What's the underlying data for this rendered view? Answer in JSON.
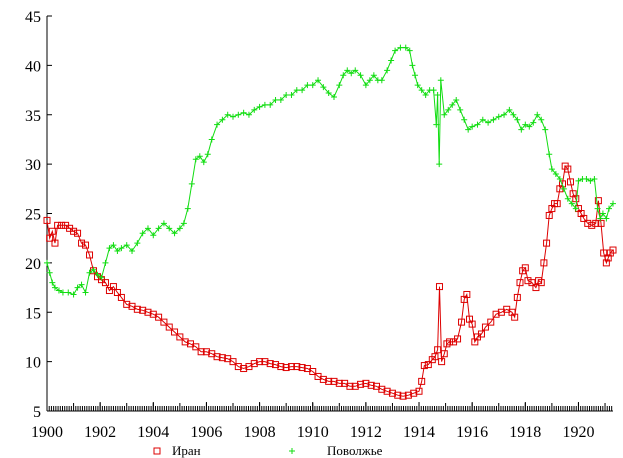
{
  "chart_data": {
    "type": "line",
    "title": "",
    "xlabel": "",
    "ylabel": "",
    "xlim": [
      1900,
      1921.3
    ],
    "ylim": [
      5,
      45
    ],
    "x_ticks": [
      1900,
      1902,
      1904,
      1906,
      1908,
      1910,
      1912,
      1914,
      1916,
      1918,
      1920
    ],
    "y_ticks": [
      5,
      10,
      15,
      20,
      25,
      30,
      35,
      40,
      45
    ],
    "grid": false,
    "legend_position": "bottom",
    "series": [
      {
        "name": "Иран",
        "color": "#dd0000",
        "marker": "square",
        "points": [
          [
            1900.0,
            24.3
          ],
          [
            1900.1,
            22.5
          ],
          [
            1900.2,
            23.2
          ],
          [
            1900.3,
            22.0
          ],
          [
            1900.4,
            23.8
          ],
          [
            1900.55,
            23.8
          ],
          [
            1900.7,
            23.8
          ],
          [
            1900.85,
            23.5
          ],
          [
            1901.0,
            23.2
          ],
          [
            1901.15,
            23.0
          ],
          [
            1901.3,
            22.0
          ],
          [
            1901.45,
            21.8
          ],
          [
            1901.6,
            20.8
          ],
          [
            1901.75,
            19.2
          ],
          [
            1901.9,
            18.6
          ],
          [
            1902.05,
            18.3
          ],
          [
            1902.2,
            18.0
          ],
          [
            1902.35,
            17.2
          ],
          [
            1902.5,
            17.6
          ],
          [
            1902.65,
            17.0
          ],
          [
            1902.8,
            16.5
          ],
          [
            1903.0,
            15.8
          ],
          [
            1903.2,
            15.6
          ],
          [
            1903.4,
            15.3
          ],
          [
            1903.6,
            15.2
          ],
          [
            1903.8,
            15.0
          ],
          [
            1904.0,
            14.8
          ],
          [
            1904.2,
            14.5
          ],
          [
            1904.4,
            14.0
          ],
          [
            1904.6,
            13.5
          ],
          [
            1904.8,
            13.0
          ],
          [
            1905.0,
            12.5
          ],
          [
            1905.2,
            12.0
          ],
          [
            1905.4,
            11.8
          ],
          [
            1905.6,
            11.5
          ],
          [
            1905.8,
            11.0
          ],
          [
            1906.0,
            11.0
          ],
          [
            1906.2,
            10.8
          ],
          [
            1906.4,
            10.5
          ],
          [
            1906.6,
            10.4
          ],
          [
            1906.8,
            10.3
          ],
          [
            1907.0,
            10.0
          ],
          [
            1907.2,
            9.5
          ],
          [
            1907.4,
            9.3
          ],
          [
            1907.6,
            9.5
          ],
          [
            1907.8,
            9.8
          ],
          [
            1908.0,
            10.0
          ],
          [
            1908.2,
            10.0
          ],
          [
            1908.4,
            9.8
          ],
          [
            1908.6,
            9.7
          ],
          [
            1908.8,
            9.5
          ],
          [
            1909.0,
            9.4
          ],
          [
            1909.2,
            9.5
          ],
          [
            1909.4,
            9.5
          ],
          [
            1909.6,
            9.4
          ],
          [
            1909.8,
            9.3
          ],
          [
            1910.0,
            9.0
          ],
          [
            1910.2,
            8.5
          ],
          [
            1910.4,
            8.2
          ],
          [
            1910.6,
            8.0
          ],
          [
            1910.8,
            8.0
          ],
          [
            1911.0,
            7.8
          ],
          [
            1911.2,
            7.8
          ],
          [
            1911.4,
            7.5
          ],
          [
            1911.6,
            7.5
          ],
          [
            1911.8,
            7.7
          ],
          [
            1912.0,
            7.8
          ],
          [
            1912.2,
            7.6
          ],
          [
            1912.4,
            7.5
          ],
          [
            1912.6,
            7.2
          ],
          [
            1912.8,
            7.0
          ],
          [
            1913.0,
            6.8
          ],
          [
            1913.2,
            6.6
          ],
          [
            1913.4,
            6.5
          ],
          [
            1913.6,
            6.6
          ],
          [
            1913.8,
            6.8
          ],
          [
            1914.0,
            7.0
          ],
          [
            1914.1,
            8.0
          ],
          [
            1914.2,
            9.6
          ],
          [
            1914.35,
            9.7
          ],
          [
            1914.5,
            10.2
          ],
          [
            1914.6,
            10.5
          ],
          [
            1914.7,
            11.2
          ],
          [
            1914.77,
            17.6
          ],
          [
            1914.85,
            10.0
          ],
          [
            1914.95,
            10.8
          ],
          [
            1915.05,
            11.8
          ],
          [
            1915.15,
            12.0
          ],
          [
            1915.3,
            12.0
          ],
          [
            1915.45,
            12.3
          ],
          [
            1915.6,
            14.0
          ],
          [
            1915.7,
            16.3
          ],
          [
            1915.8,
            16.8
          ],
          [
            1915.9,
            14.3
          ],
          [
            1916.0,
            13.8
          ],
          [
            1916.1,
            12.0
          ],
          [
            1916.2,
            12.5
          ],
          [
            1916.35,
            12.8
          ],
          [
            1916.5,
            13.5
          ],
          [
            1916.7,
            14.0
          ],
          [
            1916.9,
            14.8
          ],
          [
            1917.1,
            15.0
          ],
          [
            1917.3,
            15.3
          ],
          [
            1917.5,
            15.0
          ],
          [
            1917.6,
            14.5
          ],
          [
            1917.7,
            16.5
          ],
          [
            1917.8,
            18.0
          ],
          [
            1917.9,
            19.2
          ],
          [
            1918.0,
            19.5
          ],
          [
            1918.1,
            18.2
          ],
          [
            1918.25,
            18.0
          ],
          [
            1918.4,
            17.5
          ],
          [
            1918.5,
            18.2
          ],
          [
            1918.6,
            18.0
          ],
          [
            1918.7,
            20.0
          ],
          [
            1918.8,
            22.0
          ],
          [
            1918.9,
            24.8
          ],
          [
            1919.0,
            25.5
          ],
          [
            1919.1,
            26.0
          ],
          [
            1919.2,
            26.0
          ],
          [
            1919.3,
            27.5
          ],
          [
            1919.4,
            28.0
          ],
          [
            1919.5,
            29.8
          ],
          [
            1919.6,
            29.5
          ],
          [
            1919.7,
            28.2
          ],
          [
            1919.8,
            27.0
          ],
          [
            1919.9,
            26.5
          ],
          [
            1920.0,
            25.5
          ],
          [
            1920.1,
            25.0
          ],
          [
            1920.2,
            24.5
          ],
          [
            1920.35,
            24.0
          ],
          [
            1920.5,
            23.8
          ],
          [
            1920.65,
            24.0
          ],
          [
            1920.75,
            26.3
          ],
          [
            1920.85,
            24.0
          ],
          [
            1920.95,
            21.0
          ],
          [
            1921.05,
            20.0
          ],
          [
            1921.12,
            20.5
          ],
          [
            1921.2,
            21.0
          ],
          [
            1921.3,
            21.3
          ]
        ]
      },
      {
        "name": "Поволжье",
        "color": "#11dd11",
        "marker": "plus",
        "points": [
          [
            1900.0,
            20.0
          ],
          [
            1900.1,
            19.0
          ],
          [
            1900.2,
            18.0
          ],
          [
            1900.3,
            17.5
          ],
          [
            1900.45,
            17.2
          ],
          [
            1900.6,
            17.0
          ],
          [
            1900.8,
            17.0
          ],
          [
            1901.0,
            16.8
          ],
          [
            1901.15,
            17.5
          ],
          [
            1901.3,
            17.8
          ],
          [
            1901.45,
            17.0
          ],
          [
            1901.6,
            19.0
          ],
          [
            1901.75,
            19.3
          ],
          [
            1901.9,
            18.8
          ],
          [
            1902.05,
            18.5
          ],
          [
            1902.2,
            20.0
          ],
          [
            1902.35,
            21.5
          ],
          [
            1902.5,
            21.8
          ],
          [
            1902.65,
            21.2
          ],
          [
            1902.8,
            21.5
          ],
          [
            1903.0,
            21.8
          ],
          [
            1903.2,
            21.2
          ],
          [
            1903.4,
            22.0
          ],
          [
            1903.6,
            23.0
          ],
          [
            1903.8,
            23.5
          ],
          [
            1904.0,
            22.8
          ],
          [
            1904.2,
            23.5
          ],
          [
            1904.4,
            24.0
          ],
          [
            1904.6,
            23.5
          ],
          [
            1904.8,
            23.0
          ],
          [
            1905.0,
            23.5
          ],
          [
            1905.15,
            24.0
          ],
          [
            1905.3,
            25.5
          ],
          [
            1905.45,
            28.0
          ],
          [
            1905.6,
            30.5
          ],
          [
            1905.75,
            30.8
          ],
          [
            1905.9,
            30.2
          ],
          [
            1906.05,
            31.0
          ],
          [
            1906.2,
            32.5
          ],
          [
            1906.4,
            34.0
          ],
          [
            1906.6,
            34.5
          ],
          [
            1906.8,
            35.0
          ],
          [
            1907.0,
            34.8
          ],
          [
            1907.2,
            35.0
          ],
          [
            1907.4,
            35.2
          ],
          [
            1907.6,
            35.0
          ],
          [
            1907.8,
            35.5
          ],
          [
            1908.0,
            35.8
          ],
          [
            1908.2,
            36.0
          ],
          [
            1908.4,
            36.0
          ],
          [
            1908.6,
            36.5
          ],
          [
            1908.8,
            36.5
          ],
          [
            1909.0,
            37.0
          ],
          [
            1909.2,
            37.0
          ],
          [
            1909.4,
            37.5
          ],
          [
            1909.6,
            37.5
          ],
          [
            1909.8,
            38.0
          ],
          [
            1910.0,
            38.0
          ],
          [
            1910.2,
            38.5
          ],
          [
            1910.4,
            37.8
          ],
          [
            1910.6,
            37.2
          ],
          [
            1910.8,
            36.8
          ],
          [
            1911.0,
            38.0
          ],
          [
            1911.15,
            39.0
          ],
          [
            1911.3,
            39.5
          ],
          [
            1911.45,
            39.2
          ],
          [
            1911.6,
            39.5
          ],
          [
            1911.8,
            39.0
          ],
          [
            1912.0,
            38.0
          ],
          [
            1912.15,
            38.5
          ],
          [
            1912.3,
            39.0
          ],
          [
            1912.45,
            38.5
          ],
          [
            1912.6,
            38.5
          ],
          [
            1912.8,
            39.5
          ],
          [
            1912.95,
            40.5
          ],
          [
            1913.1,
            41.5
          ],
          [
            1913.3,
            41.8
          ],
          [
            1913.5,
            41.8
          ],
          [
            1913.65,
            41.5
          ],
          [
            1913.75,
            40.0
          ],
          [
            1913.85,
            39.0
          ],
          [
            1913.95,
            38.0
          ],
          [
            1914.1,
            37.5
          ],
          [
            1914.25,
            37.0
          ],
          [
            1914.4,
            37.5
          ],
          [
            1914.55,
            37.5
          ],
          [
            1914.65,
            34.0
          ],
          [
            1914.7,
            37.0
          ],
          [
            1914.76,
            30.0
          ],
          [
            1914.82,
            38.5
          ],
          [
            1914.95,
            35.0
          ],
          [
            1915.1,
            35.5
          ],
          [
            1915.25,
            36.0
          ],
          [
            1915.4,
            36.5
          ],
          [
            1915.55,
            35.5
          ],
          [
            1915.7,
            34.5
          ],
          [
            1915.85,
            33.5
          ],
          [
            1916.0,
            33.8
          ],
          [
            1916.2,
            34.0
          ],
          [
            1916.4,
            34.5
          ],
          [
            1916.6,
            34.2
          ],
          [
            1916.8,
            34.5
          ],
          [
            1917.0,
            34.8
          ],
          [
            1917.2,
            35.0
          ],
          [
            1917.4,
            35.5
          ],
          [
            1917.55,
            35.0
          ],
          [
            1917.7,
            34.5
          ],
          [
            1917.85,
            33.5
          ],
          [
            1918.0,
            34.0
          ],
          [
            1918.15,
            33.8
          ],
          [
            1918.3,
            34.2
          ],
          [
            1918.45,
            35.0
          ],
          [
            1918.6,
            34.5
          ],
          [
            1918.75,
            33.5
          ],
          [
            1918.9,
            31.0
          ],
          [
            1919.0,
            29.5
          ],
          [
            1919.15,
            29.0
          ],
          [
            1919.3,
            28.5
          ],
          [
            1919.45,
            27.5
          ],
          [
            1919.6,
            26.5
          ],
          [
            1919.75,
            26.0
          ],
          [
            1919.9,
            25.5
          ],
          [
            1920.0,
            28.3
          ],
          [
            1920.15,
            28.5
          ],
          [
            1920.3,
            28.5
          ],
          [
            1920.45,
            28.3
          ],
          [
            1920.6,
            28.5
          ],
          [
            1920.72,
            25.5
          ],
          [
            1920.82,
            24.5
          ],
          [
            1920.92,
            25.0
          ],
          [
            1921.05,
            24.5
          ],
          [
            1921.15,
            25.5
          ],
          [
            1921.3,
            26.0
          ]
        ]
      }
    ]
  }
}
